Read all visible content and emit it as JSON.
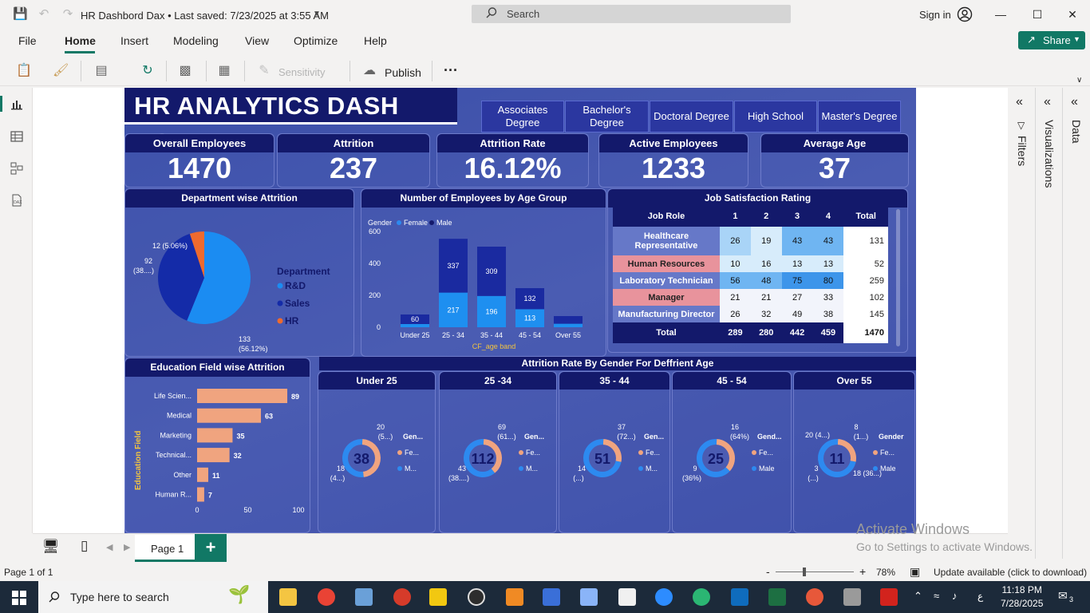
{
  "window": {
    "title": "HR Dashbord Dax • Last saved: 7/23/2025 at 3:55 AM",
    "search_placeholder": "Search",
    "signin": "Sign in"
  },
  "menu": {
    "file": "File",
    "home": "Home",
    "insert": "Insert",
    "modeling": "Modeling",
    "view": "View",
    "optimize": "Optimize",
    "help": "Help",
    "share": "Share"
  },
  "ribbon": {
    "sensitivity": "Sensitivity",
    "publish": "Publish",
    "more": "···"
  },
  "panes": {
    "filters": "Filters",
    "visualizations": "Visualizations",
    "data": "Data"
  },
  "dashboard": {
    "title": "HR ANALYTICS DASH BORD",
    "slicer": [
      "Associates Degree",
      "Bachelor's Degree",
      "Doctoral Degree",
      "High School",
      "Master's Degree"
    ],
    "kpis": [
      {
        "label": "Overall Employees",
        "value": "1470"
      },
      {
        "label": "Attrition",
        "value": "237"
      },
      {
        "label": "Attrition Rate",
        "value": "16.12%"
      },
      {
        "label": "Active Employees",
        "value": "1233"
      },
      {
        "label": "Average Age",
        "value": "37"
      }
    ],
    "dept_title": "Department wise Attrition",
    "age_title": "Number of Employees by Age Group",
    "job_title": "Job Satisfaction Rating",
    "edu_title": "Education Field wise Attrition",
    "gender_title": "Attrition Rate By Gender For Deffrient Age",
    "colors": {
      "bg": "#3f50aa",
      "head": "#13196b",
      "female": "#f0a47f",
      "male": "#2d8af0",
      "rd": "#1b8cf2",
      "sales": "#142ba8",
      "hr": "#ee6a2e"
    }
  },
  "chart_data": [
    {
      "type": "pie",
      "title": "Department wise Attrition",
      "legend_title": "Department",
      "categories": [
        "R&D",
        "Sales",
        "HR"
      ],
      "values": [
        133,
        92,
        12
      ],
      "labels": [
        "133 (56.12%)",
        "92 (38....)",
        "12 (5.06%)"
      ]
    },
    {
      "type": "bar",
      "title": "Number of Employees by Age Group",
      "xlabel": "CF_age band",
      "legend_title": "Gender",
      "categories": [
        "Under 25",
        "25 - 34",
        "35 - 44",
        "45 - 54",
        "Over 55"
      ],
      "series": [
        {
          "name": "Female",
          "values": [
            20,
            217,
            196,
            113,
            22
          ]
        },
        {
          "name": "Male",
          "values": [
            60,
            337,
            309,
            132,
            48
          ]
        }
      ],
      "data_labels": {
        "Female": [
          "",
          "217",
          "196",
          "113",
          ""
        ],
        "Male": [
          "60",
          "337",
          "309",
          "132",
          ""
        ]
      },
      "ylim": [
        0,
        600
      ],
      "yticks": [
        "0",
        "200",
        "400",
        "600"
      ]
    },
    {
      "type": "table",
      "title": "Job Satisfaction Rating",
      "columns": [
        "Job Role",
        "1",
        "2",
        "3",
        "4",
        "Total"
      ],
      "rows": [
        [
          "Healthcare Representative",
          "26",
          "19",
          "43",
          "43",
          "131"
        ],
        [
          "Human Resources",
          "10",
          "16",
          "13",
          "13",
          "52"
        ],
        [
          "Laboratory Technician",
          "56",
          "48",
          "75",
          "80",
          "259"
        ],
        [
          "Manager",
          "21",
          "21",
          "27",
          "33",
          "102"
        ],
        [
          "Manufacturing Director",
          "26",
          "32",
          "49",
          "38",
          "145"
        ]
      ],
      "total_row": [
        "Total",
        "289",
        "280",
        "442",
        "459",
        "1470"
      ]
    },
    {
      "type": "bar",
      "title": "Education Field wise Attrition",
      "ylabel": "Education Field",
      "categories": [
        "Life Scien...",
        "Medical",
        "Marketing",
        "Technical...",
        "Other",
        "Human R..."
      ],
      "values": [
        89,
        63,
        35,
        32,
        11,
        7
      ],
      "xlim": [
        0,
        100
      ],
      "xticks": [
        "0",
        "50",
        "100"
      ]
    },
    {
      "type": "pie",
      "title": "Attrition Rate By Gender For Deffrient Age",
      "groups": [
        {
          "band": "Under 25",
          "center": "38",
          "female": 18,
          "male": 20,
          "female_label": "18 (4...)",
          "male_label": "20 (5...)"
        },
        {
          "band": "25 -34",
          "center": "112",
          "female": 43,
          "male": 69,
          "female_label": "43 (38....)",
          "male_label": "69 (61...)"
        },
        {
          "band": "35 - 44",
          "center": "51",
          "female": 14,
          "male": 37,
          "female_label": "14 (...)",
          "male_label": "37 (72...)"
        },
        {
          "band": "45 - 54",
          "center": "25",
          "female": 9,
          "male": 16,
          "female_label": "9 (36%)",
          "male_label": "16 (64%)"
        },
        {
          "band": "Over 55",
          "center": "11",
          "female": 3,
          "male": 8,
          "female_label": "3 (...)",
          "male_label": "8 (1...)",
          "extra_label": "20 (4...)",
          "extra_label2": "18 (36...)"
        }
      ],
      "legend_title": [
        "Gen...",
        "Gen...",
        "Gen...",
        "Gend...",
        "Gender"
      ],
      "legend_female": [
        "Fe...",
        "Fe...",
        "Fe...",
        "Fe...",
        "Fe..."
      ],
      "legend_male": [
        "M...",
        "M...",
        "M...",
        "Male",
        "Male"
      ]
    }
  ],
  "pagebar": {
    "page": "Page 1",
    "add": "+"
  },
  "status": {
    "page_of": "Page 1 of 1",
    "zoom": "78%",
    "update": "Update available (click to download)"
  },
  "activate": {
    "line1": "Activate Windows",
    "line2": "Go to Settings to activate Windows."
  },
  "taskbar": {
    "search": "Type here to search",
    "time": "11:18 PM",
    "date": "7/28/2025",
    "notif": "3"
  }
}
